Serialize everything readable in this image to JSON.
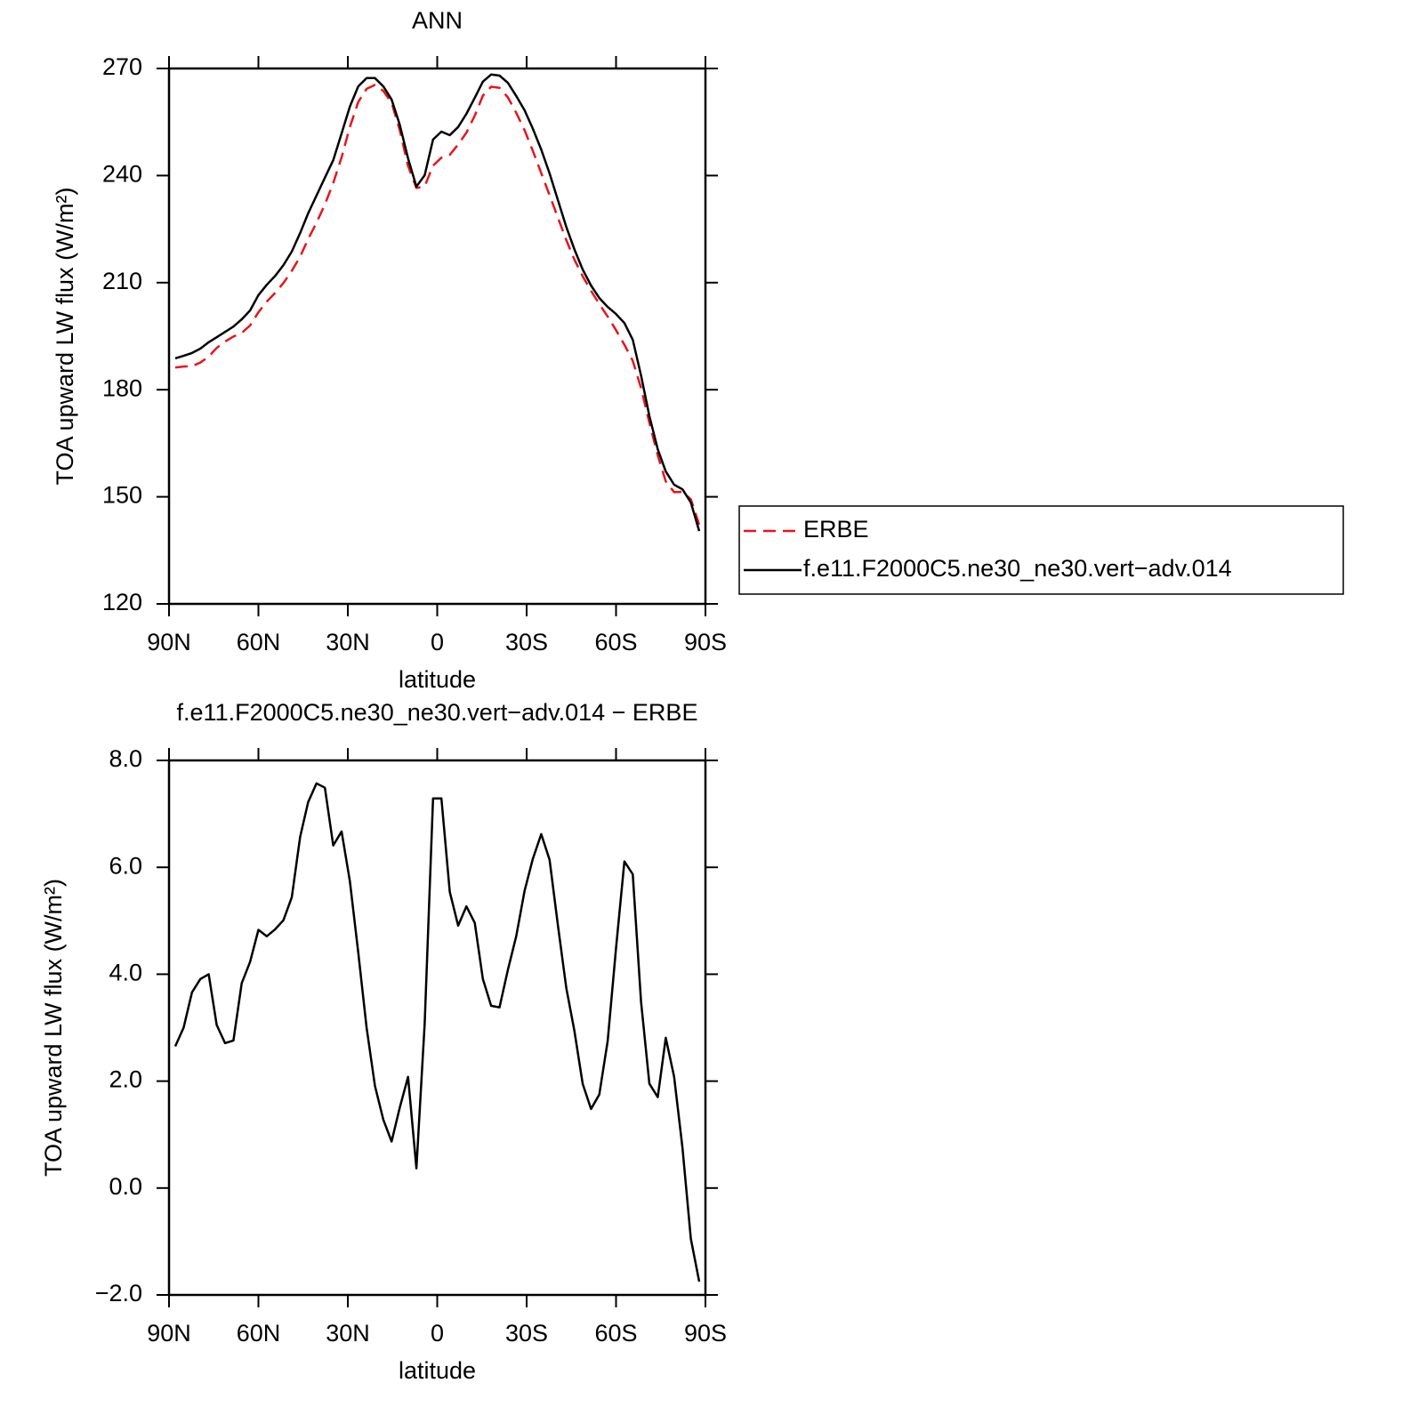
{
  "chart_data": [
    {
      "type": "line",
      "title": "ANN",
      "x_label": "latitude",
      "y_label": "TOA upward LW flux (W/m²)",
      "x": [
        87.9,
        85.1,
        82.3,
        79.5,
        76.7,
        74.0,
        71.2,
        68.4,
        65.6,
        62.8,
        60.0,
        57.2,
        54.4,
        51.6,
        48.8,
        46.0,
        43.3,
        40.5,
        37.7,
        34.9,
        32.1,
        29.3,
        26.5,
        23.7,
        20.9,
        18.1,
        15.3,
        12.6,
        9.8,
        7.0,
        4.2,
        1.4,
        -1.4,
        -4.2,
        -7.0,
        -9.8,
        -12.6,
        -15.3,
        -18.1,
        -20.9,
        -23.7,
        -26.5,
        -29.3,
        -32.1,
        -34.9,
        -37.7,
        -40.5,
        -43.3,
        -46.0,
        -48.8,
        -51.6,
        -54.4,
        -57.2,
        -60.0,
        -62.8,
        -65.6,
        -68.4,
        -71.2,
        -74.0,
        -76.7,
        -79.5,
        -82.3,
        -85.1,
        -87.9
      ],
      "xlim": [
        90,
        -90
      ],
      "xticks": [
        {
          "value": 90,
          "label": "90N"
        },
        {
          "value": 60,
          "label": "60N"
        },
        {
          "value": 30,
          "label": "30N"
        },
        0,
        {
          "value": -30,
          "label": "30S"
        },
        {
          "value": -60,
          "label": "60S"
        },
        {
          "value": -90,
          "label": "90S"
        }
      ],
      "ylim": [
        120,
        270
      ],
      "yticks": [
        120,
        150,
        180,
        210,
        240,
        270
      ],
      "legend": "outside-right",
      "series": [
        {
          "name": "ERBE",
          "color": "#e8141c",
          "line_style": "dashed",
          "values": [
            186.2,
            186.5,
            186.6,
            187.6,
            189.3,
            191.7,
            193.5,
            194.9,
            195.9,
            198.0,
            201.7,
            204.7,
            207.1,
            209.9,
            213.3,
            217.3,
            222.2,
            226.8,
            231.9,
            237.9,
            245.1,
            253.6,
            260.6,
            264.3,
            265.4,
            263.7,
            260.4,
            252.8,
            242.7,
            236.5,
            237.0,
            242.8,
            245.0,
            245.8,
            248.7,
            252.0,
            256.8,
            262.4,
            264.9,
            264.6,
            261.9,
            257.6,
            252.7,
            246.9,
            240.7,
            234.5,
            228.2,
            221.9,
            216.5,
            211.8,
            207.7,
            204.0,
            200.5,
            196.7,
            192.6,
            188.1,
            180.5,
            170.7,
            161.6,
            154.3,
            151.3,
            151.4,
            149.3,
            142.2
          ]
        },
        {
          "name": "f.e11.F2000C5.ne30_ne30.vert−adv.014",
          "color": "#000000",
          "line_style": "solid",
          "values": [
            188.8,
            189.5,
            190.3,
            191.5,
            193.3,
            194.7,
            196.2,
            197.7,
            199.7,
            202.2,
            206.5,
            209.4,
            211.9,
            214.9,
            218.7,
            223.9,
            229.4,
            234.4,
            239.4,
            244.3,
            251.8,
            259.3,
            265.0,
            267.3,
            267.3,
            265.0,
            261.3,
            254.3,
            244.8,
            236.9,
            240.1,
            250.1,
            252.3,
            251.3,
            253.6,
            257.3,
            261.8,
            266.3,
            268.3,
            268.0,
            266.0,
            262.3,
            258.3,
            253.1,
            247.3,
            240.6,
            233.1,
            225.6,
            219.4,
            213.7,
            209.2,
            205.7,
            203.2,
            201.2,
            198.7,
            194.0,
            184.0,
            172.6,
            163.3,
            157.1,
            153.4,
            152.1,
            148.4,
            140.4
          ]
        }
      ]
    },
    {
      "type": "line",
      "title": "f.e11.F2000C5.ne30_ne30.vert−adv.014 − ERBE",
      "x_label": "latitude",
      "y_label": "TOA upward LW flux (W/m²)",
      "x": [
        87.9,
        85.1,
        82.3,
        79.5,
        76.7,
        74.0,
        71.2,
        68.4,
        65.6,
        62.8,
        60.0,
        57.2,
        54.4,
        51.6,
        48.8,
        46.0,
        43.3,
        40.5,
        37.7,
        34.9,
        32.1,
        29.3,
        26.5,
        23.7,
        20.9,
        18.1,
        15.3,
        12.6,
        9.8,
        7.0,
        4.2,
        1.4,
        -1.4,
        -4.2,
        -7.0,
        -9.8,
        -12.6,
        -15.3,
        -18.1,
        -20.9,
        -23.7,
        -26.5,
        -29.3,
        -32.1,
        -34.9,
        -37.7,
        -40.5,
        -43.3,
        -46.0,
        -48.8,
        -51.6,
        -54.4,
        -57.2,
        -60.0,
        -62.8,
        -65.6,
        -68.4,
        -71.2,
        -74.0,
        -76.7,
        -79.5,
        -82.3,
        -85.1,
        -87.9
      ],
      "xlim": [
        90,
        -90
      ],
      "xticks": [
        {
          "value": 90,
          "label": "90N"
        },
        {
          "value": 60,
          "label": "60N"
        },
        {
          "value": 30,
          "label": "30N"
        },
        0,
        {
          "value": -30,
          "label": "30S"
        },
        {
          "value": -60,
          "label": "60S"
        },
        {
          "value": -90,
          "label": "90S"
        }
      ],
      "ylim": [
        -2,
        8
      ],
      "yticks": [
        {
          "value": -2,
          "label": "−2.0"
        },
        {
          "value": 0,
          "label": "0.0"
        },
        {
          "value": 2,
          "label": "2.0"
        },
        {
          "value": 4,
          "label": "4.0"
        },
        {
          "value": 6,
          "label": "6.0"
        },
        {
          "value": 8,
          "label": "8.0"
        }
      ],
      "series": [
        {
          "color": "#000000",
          "line_style": "solid",
          "values": [
            2.65,
            3.0,
            3.66,
            3.91,
            4.0,
            3.05,
            2.71,
            2.76,
            3.83,
            4.23,
            4.83,
            4.71,
            4.84,
            5.01,
            5.44,
            6.57,
            7.22,
            7.57,
            7.49,
            6.41,
            6.67,
            5.74,
            4.41,
            3.0,
            1.91,
            1.28,
            0.87,
            1.5,
            2.08,
            0.37,
            3.08,
            7.29,
            7.29,
            5.54,
            4.91,
            5.27,
            4.96,
            3.91,
            3.41,
            3.38,
            4.08,
            4.71,
            5.56,
            6.16,
            6.62,
            6.14,
            4.91,
            3.74,
            2.95,
            1.95,
            1.48,
            1.75,
            2.75,
            4.49,
            6.11,
            5.87,
            3.49,
            1.95,
            1.7,
            2.81,
            2.08,
            0.75,
            -0.95,
            -1.75
          ]
        }
      ]
    }
  ]
}
